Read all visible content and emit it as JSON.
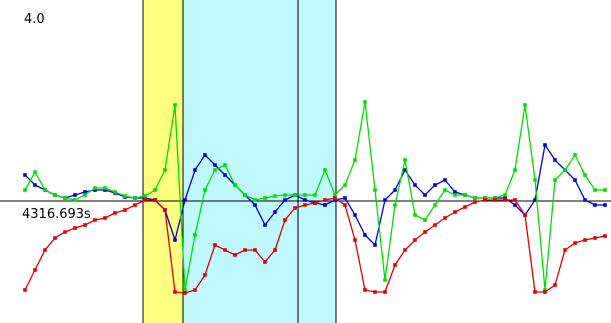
{
  "chart_data": {
    "type": "line",
    "time_label": "4316.693s",
    "x": [
      2.5,
      3.5,
      4.5,
      5.5,
      6.5,
      7.5,
      8.5,
      9.5,
      10.5,
      11.5,
      12.5,
      13.5,
      14.5,
      15.5,
      16.5,
      17.5,
      18.5,
      19.5,
      20.5,
      21.5,
      22.5,
      23.5,
      24.5,
      25.5,
      26.5,
      27.5,
      28.5,
      29.5,
      30.5,
      31.5,
      32.5,
      33.5,
      34.5,
      35.5,
      36.5,
      37.5,
      38.5,
      39.5,
      40.5,
      41.5,
      42.5,
      43.5,
      44.5,
      45.5,
      46.5,
      47.5,
      48.5,
      49.5,
      50.5,
      51.5,
      52.5,
      53.5,
      54.5,
      55.5,
      56.5,
      57.5,
      58.5,
      59.5,
      60.5
    ],
    "xlim": [
      0,
      61.1
    ],
    "ylim": [
      -2.44,
      4.0
    ],
    "yticks": [
      {
        "value": 4,
        "label": "4.0"
      }
    ],
    "hline": 0,
    "regions": [
      {
        "color": "#ffff80",
        "x": [
          14.3,
          18.3
        ]
      },
      {
        "color": "#c0f8ff",
        "x": [
          18.3,
          33.6
        ]
      }
    ],
    "markers": [
      14.3,
      18.3,
      29.8,
      33.6
    ],
    "series": [
      {
        "color": "#0000e0",
        "values": [
          0.52,
          0.32,
          0.22,
          0.12,
          0.06,
          0.12,
          0.18,
          0.22,
          0.22,
          0.16,
          0.08,
          0.06,
          0.06,
          0.02,
          -0.18,
          -0.78,
          0.02,
          0.62,
          0.92,
          0.72,
          0.52,
          0.32,
          0.12,
          -0.08,
          -0.48,
          -0.22,
          0.02,
          0.12,
          0.02,
          -0.04,
          -0.08,
          0.02,
          0.06,
          -0.28,
          -0.68,
          -0.88,
          0.02,
          0.22,
          0.62,
          0.32,
          0.12,
          0.32,
          0.42,
          0.18,
          0.12,
          0.06,
          0.06,
          0.06,
          0.06,
          -0.08,
          -0.28,
          0.02,
          1.12,
          0.82,
          0.62,
          0.42,
          0.02,
          -0.08,
          -0.08
        ]
      },
      {
        "color": "#00e000",
        "values": [
          0.22,
          0.58,
          0.22,
          0.12,
          0.06,
          0.02,
          0.12,
          0.26,
          0.26,
          0.18,
          0.1,
          0.06,
          0.1,
          0.22,
          0.62,
          1.92,
          -1.78,
          -0.68,
          0.22,
          0.62,
          0.72,
          0.32,
          0.12,
          0.02,
          0.06,
          0.1,
          0.12,
          0.12,
          0.12,
          0.12,
          0.62,
          0.12,
          0.32,
          0.82,
          1.98,
          0.22,
          -1.58,
          -0.08,
          0.82,
          -0.28,
          -0.38,
          -0.08,
          0.22,
          0.12,
          0.12,
          0.06,
          0.06,
          0.06,
          0.12,
          0.62,
          1.92,
          0.42,
          -1.78,
          0.42,
          0.62,
          0.92,
          0.52,
          0.22,
          0.22
        ]
      },
      {
        "color": "#e00000",
        "values": [
          -1.78,
          -1.38,
          -0.98,
          -0.74,
          -0.62,
          -0.54,
          -0.48,
          -0.38,
          -0.34,
          -0.24,
          -0.18,
          -0.08,
          0.02,
          0.02,
          -0.18,
          -1.82,
          -1.84,
          -1.78,
          -1.48,
          -0.88,
          -0.98,
          -1.08,
          -0.98,
          -0.98,
          -1.22,
          -0.98,
          -0.38,
          -0.14,
          -0.08,
          -0.04,
          0.02,
          0.06,
          -0.08,
          -0.78,
          -1.78,
          -1.82,
          -1.82,
          -1.28,
          -0.98,
          -0.78,
          -0.62,
          -0.48,
          -0.34,
          -0.22,
          -0.12,
          -0.02,
          0.02,
          0.02,
          0.02,
          0.02,
          -0.28,
          -1.82,
          -1.82,
          -1.68,
          -0.98,
          -0.84,
          -0.78,
          -0.74,
          -0.7
        ]
      }
    ]
  }
}
